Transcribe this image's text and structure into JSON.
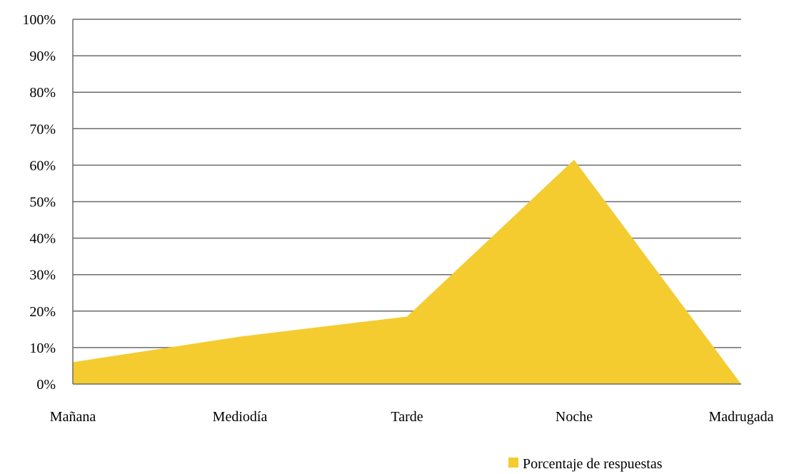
{
  "chart_data": {
    "type": "area",
    "categories": [
      "Mañana",
      "Mediodía",
      "Tarde",
      "Noche",
      "Madrugada"
    ],
    "series": [
      {
        "name": "Porcentaje de respuestas",
        "values": [
          6,
          13,
          18.5,
          61.5,
          0
        ]
      }
    ],
    "ylim": [
      0,
      100
    ],
    "yticks": [
      "0%",
      "10%",
      "20%",
      "30%",
      "40%",
      "50%",
      "60%",
      "70%",
      "80%",
      "90%",
      "100%"
    ],
    "grid": true,
    "legend_position": "bottom-right",
    "colors": {
      "area": "#F4CC30",
      "grid": "#6b6b6b"
    }
  }
}
